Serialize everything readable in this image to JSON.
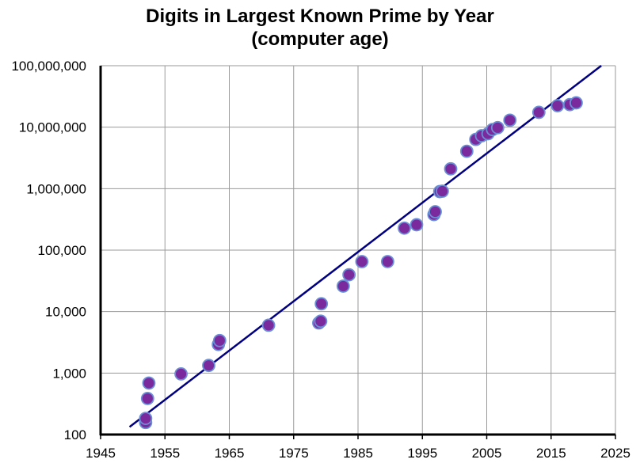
{
  "chart_data": {
    "type": "scatter",
    "title": "Digits in Largest Known Prime by Year",
    "subtitle": "(computer age)",
    "xlabel": "",
    "ylabel": "",
    "xlim": [
      1945,
      2025
    ],
    "ylim": [
      100,
      100000000
    ],
    "y_scale": "log",
    "grid": true,
    "legend": "none",
    "x_ticks": [
      1945,
      1955,
      1965,
      1975,
      1985,
      1995,
      2005,
      2015,
      2025
    ],
    "x_tick_labels": [
      "1945",
      "1955",
      "1965",
      "1975",
      "1985",
      "1995",
      "2005",
      "2015",
      "2025"
    ],
    "y_ticks": [
      100,
      1000,
      10000,
      100000,
      1000000,
      10000000,
      100000000
    ],
    "y_tick_labels": [
      "100",
      "1,000",
      "10,000",
      "100,000",
      "1,000,000",
      "10,000,000",
      "100,000,000"
    ],
    "series": [
      {
        "points": [
          {
            "x": 1952.0,
            "y": 157
          },
          {
            "x": 1952.0,
            "y": 183
          },
          {
            "x": 1952.3,
            "y": 386
          },
          {
            "x": 1952.5,
            "y": 687
          },
          {
            "x": 1957.5,
            "y": 969
          },
          {
            "x": 1961.8,
            "y": 1332
          },
          {
            "x": 1963.3,
            "y": 2917
          },
          {
            "x": 1963.5,
            "y": 3376
          },
          {
            "x": 1971.1,
            "y": 6002
          },
          {
            "x": 1978.9,
            "y": 6533
          },
          {
            "x": 1979.2,
            "y": 6987
          },
          {
            "x": 1979.3,
            "y": 13395
          },
          {
            "x": 1982.7,
            "y": 25962
          },
          {
            "x": 1983.6,
            "y": 39751
          },
          {
            "x": 1985.6,
            "y": 65050
          },
          {
            "x": 1989.6,
            "y": 65087
          },
          {
            "x": 1992.2,
            "y": 227832
          },
          {
            "x": 1994.1,
            "y": 258716
          },
          {
            "x": 1996.8,
            "y": 378632
          },
          {
            "x": 1997.0,
            "y": 420921
          },
          {
            "x": 1997.7,
            "y": 895932
          },
          {
            "x": 1998.1,
            "y": 909526
          },
          {
            "x": 1999.4,
            "y": 2098960
          },
          {
            "x": 2001.9,
            "y": 4053946
          },
          {
            "x": 2003.3,
            "y": 6320430
          },
          {
            "x": 2004.2,
            "y": 7235733
          },
          {
            "x": 2005.2,
            "y": 7816230
          },
          {
            "x": 2005.9,
            "y": 9152052
          },
          {
            "x": 2006.7,
            "y": 9808358
          },
          {
            "x": 2008.6,
            "y": 12978189
          },
          {
            "x": 2013.1,
            "y": 17425170
          },
          {
            "x": 2016.0,
            "y": 22338618
          },
          {
            "x": 2017.9,
            "y": 23249425
          },
          {
            "x": 2018.9,
            "y": 24862048
          }
        ],
        "color": "#7B2A9E",
        "edge_color": "#6B8FD6"
      }
    ],
    "trendline": {
      "type": "exponential",
      "points": [
        {
          "x": 1949.5,
          "y": 133
        },
        {
          "x": 2022.8,
          "y": 100000000
        }
      ],
      "color": "#000080"
    }
  }
}
